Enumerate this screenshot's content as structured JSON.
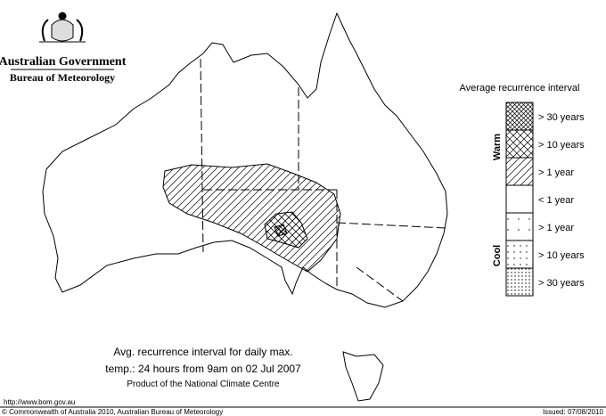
{
  "header": {
    "org": "Australian Government",
    "bureau": "Bureau of Meteorology"
  },
  "legend": {
    "title": "Average recurrence interval",
    "warm_label": "Warm",
    "cool_label": "Cool",
    "entries": [
      "> 30 years",
      "> 10 years",
      "> 1 year",
      "< 1 year",
      "> 1 year",
      "> 10 years",
      "> 30 years"
    ]
  },
  "caption": {
    "lines": [
      "Avg. recurrence interval for daily max.",
      "temp.: 24 hours from 9am on 02 Jul 2007",
      "Product of the National Climate Centre"
    ]
  },
  "footer": {
    "url": "http://www.bom.gov.au",
    "copyright": "© Commonwealth of Australia 2010, Australian Bureau of Meteorology",
    "issued": "Issued: 07/08/2010"
  }
}
